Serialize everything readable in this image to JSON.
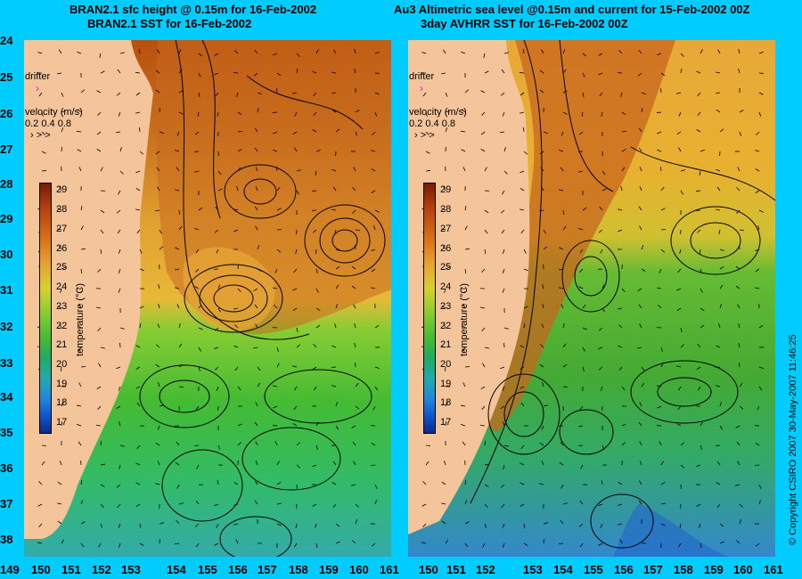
{
  "left_panel": {
    "title_line1": "BRAN2.1 sfc height @ 0.15m for 16-Feb-2002",
    "title_line2": "BRAN2.1 SST for 16-Feb-2002",
    "drifter_label": "drifter",
    "velocity_label": "velocity (m/s)",
    "velocity_values": "0.2 0.4 0.8"
  },
  "right_panel": {
    "title_line1": "Au3 Altimetric sea level  @0.15m and current for 15-Feb-2002 00Z",
    "title_line2": "3day AVHRR SST for 16-Feb-2002 00Z",
    "drifter_label": "drifter",
    "velocity_label": "velocity (m/s)",
    "velocity_values": "0.2 0.4 0.8"
  },
  "colorbar": {
    "title": "temperature (°C)",
    "ticks": [
      "29",
      "28",
      "27",
      "26",
      "25",
      "24",
      "23",
      "22",
      "21",
      "20",
      "19",
      "18",
      "17"
    ]
  },
  "latitude_labels": [
    "24",
    "25",
    "26",
    "27",
    "28",
    "29",
    "30",
    "31",
    "32",
    "33",
    "34",
    "35",
    "36",
    "37",
    "38"
  ],
  "longitude_labels": [
    "149",
    "150",
    "151",
    "152",
    "153",
    "154",
    "155",
    "156",
    "157",
    "158",
    "159",
    "160",
    "161"
  ],
  "copyright": "© Copyright CSIRO 2007   30-May-2007 11:46:25",
  "colors": {
    "background": "#00ccff",
    "land": "#f4c49a",
    "warm": "#c8661e",
    "mid": "#e8b030",
    "cool": "#44bb33",
    "cold": "#2277dd"
  }
}
